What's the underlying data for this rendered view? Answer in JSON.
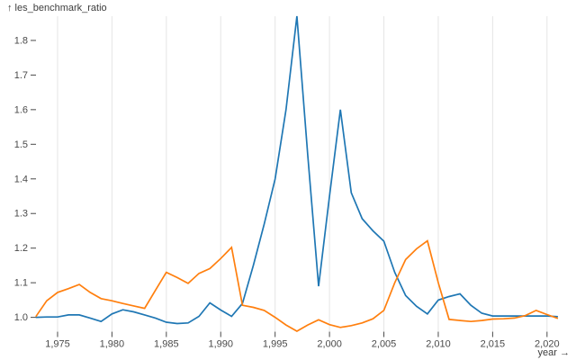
{
  "chart": {
    "title": "↑ les_benchmark_ratio",
    "x_axis_label": "year →"
  },
  "chart_data": {
    "type": "line",
    "title": "les_benchmark_ratio",
    "xlabel": "year",
    "ylabel": "les_benchmark_ratio",
    "x": [
      1973,
      1974,
      1975,
      1976,
      1977,
      1978,
      1979,
      1980,
      1981,
      1982,
      1983,
      1984,
      1985,
      1986,
      1987,
      1988,
      1989,
      1990,
      1991,
      1992,
      1993,
      1994,
      1995,
      1996,
      1997,
      1998,
      1999,
      2000,
      2001,
      2002,
      2003,
      2004,
      2005,
      2006,
      2007,
      2008,
      2009,
      2010,
      2011,
      2012,
      2013,
      2014,
      2015,
      2016,
      2017,
      2018,
      2019,
      2020,
      2021
    ],
    "series": [
      {
        "color": "#1f77b4",
        "values": [
          1.0,
          1.001,
          1.001,
          1.007,
          1.007,
          0.998,
          0.988,
          1.01,
          1.022,
          1.016,
          1.007,
          0.998,
          0.986,
          0.982,
          0.984,
          1.003,
          1.042,
          1.021,
          1.003,
          1.04,
          1.15,
          1.27,
          1.4,
          1.6,
          1.87,
          1.47,
          1.09,
          1.35,
          1.6,
          1.36,
          1.285,
          1.25,
          1.22,
          1.13,
          1.063,
          1.032,
          1.01,
          1.05,
          1.06,
          1.068,
          1.035,
          1.012,
          1.004,
          1.004,
          1.004,
          1.004,
          1.004,
          1.004,
          1.002
        ]
      },
      {
        "color": "#ff7f0e",
        "values": [
          1.002,
          1.048,
          1.072,
          1.083,
          1.095,
          1.072,
          1.054,
          1.048,
          1.04,
          1.033,
          1.026,
          1.078,
          1.13,
          1.115,
          1.098,
          1.127,
          1.141,
          1.17,
          1.202,
          1.035,
          1.029,
          1.02,
          1.0,
          0.978,
          0.96,
          0.978,
          0.993,
          0.979,
          0.971,
          0.976,
          0.984,
          0.996,
          1.02,
          1.1,
          1.167,
          1.198,
          1.221,
          1.1,
          0.994,
          0.991,
          0.988,
          0.991,
          0.995,
          0.996,
          0.998,
          1.005,
          1.02,
          1.008,
          0.997
        ]
      }
    ],
    "x_ticks": [
      1975,
      1980,
      1985,
      1990,
      1995,
      2000,
      2005,
      2010,
      2015,
      2020
    ],
    "x_tick_labels": [
      "1,975",
      "1,980",
      "1,985",
      "1,990",
      "1,995",
      "2,000",
      "2,005",
      "2,010",
      "2,015",
      "2,020"
    ],
    "y_ticks": [
      1.0,
      1.1,
      1.2,
      1.3,
      1.4,
      1.5,
      1.6,
      1.7,
      1.8
    ],
    "y_tick_labels": [
      "1.0",
      "1.1",
      "1.2",
      "1.3",
      "1.4",
      "1.5",
      "1.6",
      "1.7",
      "1.8"
    ],
    "xlim": [
      1973,
      2021
    ],
    "ylim": [
      0.96,
      1.87
    ],
    "grid": "vertical",
    "legend": "none",
    "colors": {
      "series_blue": "#1f77b4",
      "series_orange": "#ff7f0e",
      "gridline": "#e5e5e5",
      "tick_text": "#4a4a4a",
      "background": "#ffffff"
    }
  }
}
